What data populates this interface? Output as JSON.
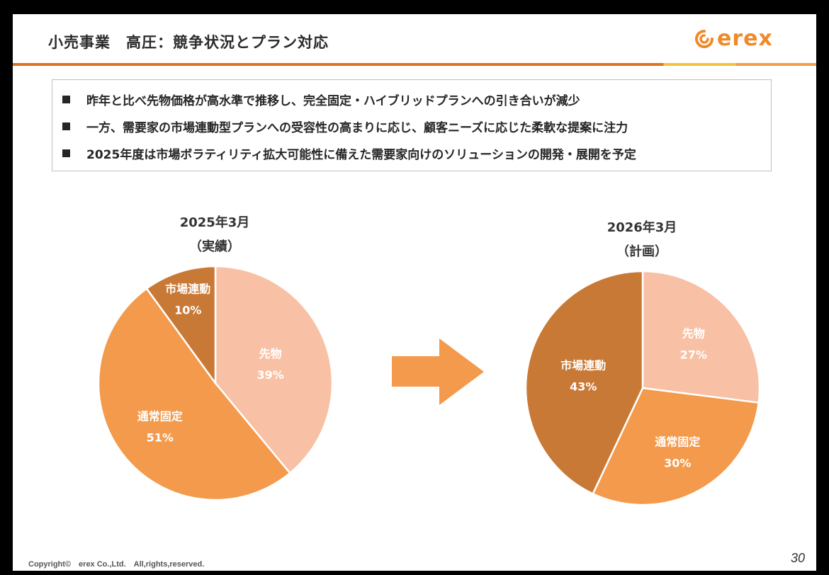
{
  "slide": {
    "title": "小売事業　高圧：競争状況とプラン対応",
    "logo_text": "erex",
    "copyright": "Copyright©　erex Co.,Ltd.　All,rights,reserved.",
    "page_number": "30"
  },
  "bullets": [
    "昨年と比べ先物価格が高水準で推移し、完全固定・ハイブリッドプランへの引き合いが減少",
    "一方、需要家の市場連動型プランへの受容性の高まりに応じ、顧客ニーズに応じた柔軟な提案に注力",
    "2025年度は市場ボラティリティ拡大可能性に備えた需要家向けのソリューションの開発・展開を予定"
  ],
  "colors": {
    "accent": "#e0731f",
    "arrow": "#f39a4c",
    "slice_futures": "#f8c1a5",
    "slice_fixed": "#f39a4c",
    "slice_market": "#c97936"
  },
  "chart_data": [
    {
      "type": "pie",
      "title": "2025年3月",
      "subtitle": "（実績）",
      "slices": [
        {
          "label": "先物",
          "value": 39,
          "display": "39%",
          "color": "#f8c1a5"
        },
        {
          "label": "通常固定",
          "value": 51,
          "display": "51%",
          "color": "#f39a4c"
        },
        {
          "label": "市場連動",
          "value": 10,
          "display": "10%",
          "color": "#c97936"
        }
      ]
    },
    {
      "type": "pie",
      "title": "2026年3月",
      "subtitle": "（計画）",
      "slices": [
        {
          "label": "先物",
          "value": 27,
          "display": "27%",
          "color": "#f8c1a5"
        },
        {
          "label": "通常固定",
          "value": 30,
          "display": "30%",
          "color": "#f39a4c"
        },
        {
          "label": "市場連動",
          "value": 43,
          "display": "43%",
          "color": "#c97936"
        }
      ]
    }
  ]
}
